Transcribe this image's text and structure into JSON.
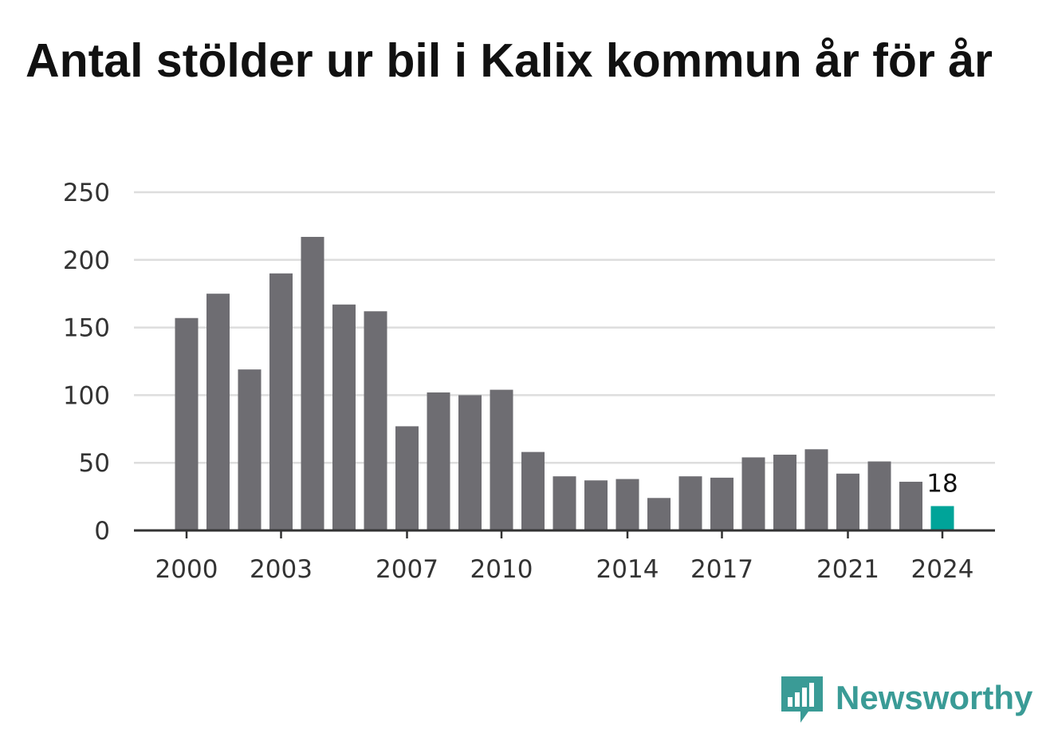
{
  "title": "Antal stölder ur bil i Kalix kommun år för år",
  "brand": {
    "name": "Newsworthy",
    "icon": "newsworthy-logo-icon",
    "color": "#3a9b96"
  },
  "colors": {
    "bar": "#6e6d72",
    "highlight": "#00a499",
    "grid": "#dddddd",
    "axis": "#333333"
  },
  "chart_data": {
    "type": "bar",
    "title": "Antal stölder ur bil i Kalix kommun år för år",
    "xlabel": "",
    "ylabel": "",
    "categories": [
      2000,
      2001,
      2002,
      2003,
      2004,
      2005,
      2006,
      2007,
      2008,
      2009,
      2010,
      2011,
      2012,
      2013,
      2014,
      2015,
      2016,
      2017,
      2018,
      2019,
      2020,
      2021,
      2022,
      2023,
      2024
    ],
    "values": [
      157,
      175,
      119,
      190,
      217,
      167,
      162,
      77,
      102,
      100,
      104,
      58,
      40,
      37,
      38,
      24,
      40,
      39,
      54,
      56,
      60,
      42,
      51,
      36,
      18
    ],
    "x_tick_labels": [
      "2000",
      "2003",
      "2007",
      "2010",
      "2014",
      "2017",
      "2021",
      "2024"
    ],
    "y_ticks": [
      0,
      50,
      100,
      150,
      200,
      250
    ],
    "ylim": [
      0,
      250
    ],
    "grid": true,
    "highlight": {
      "category": 2024,
      "label": "18"
    }
  }
}
